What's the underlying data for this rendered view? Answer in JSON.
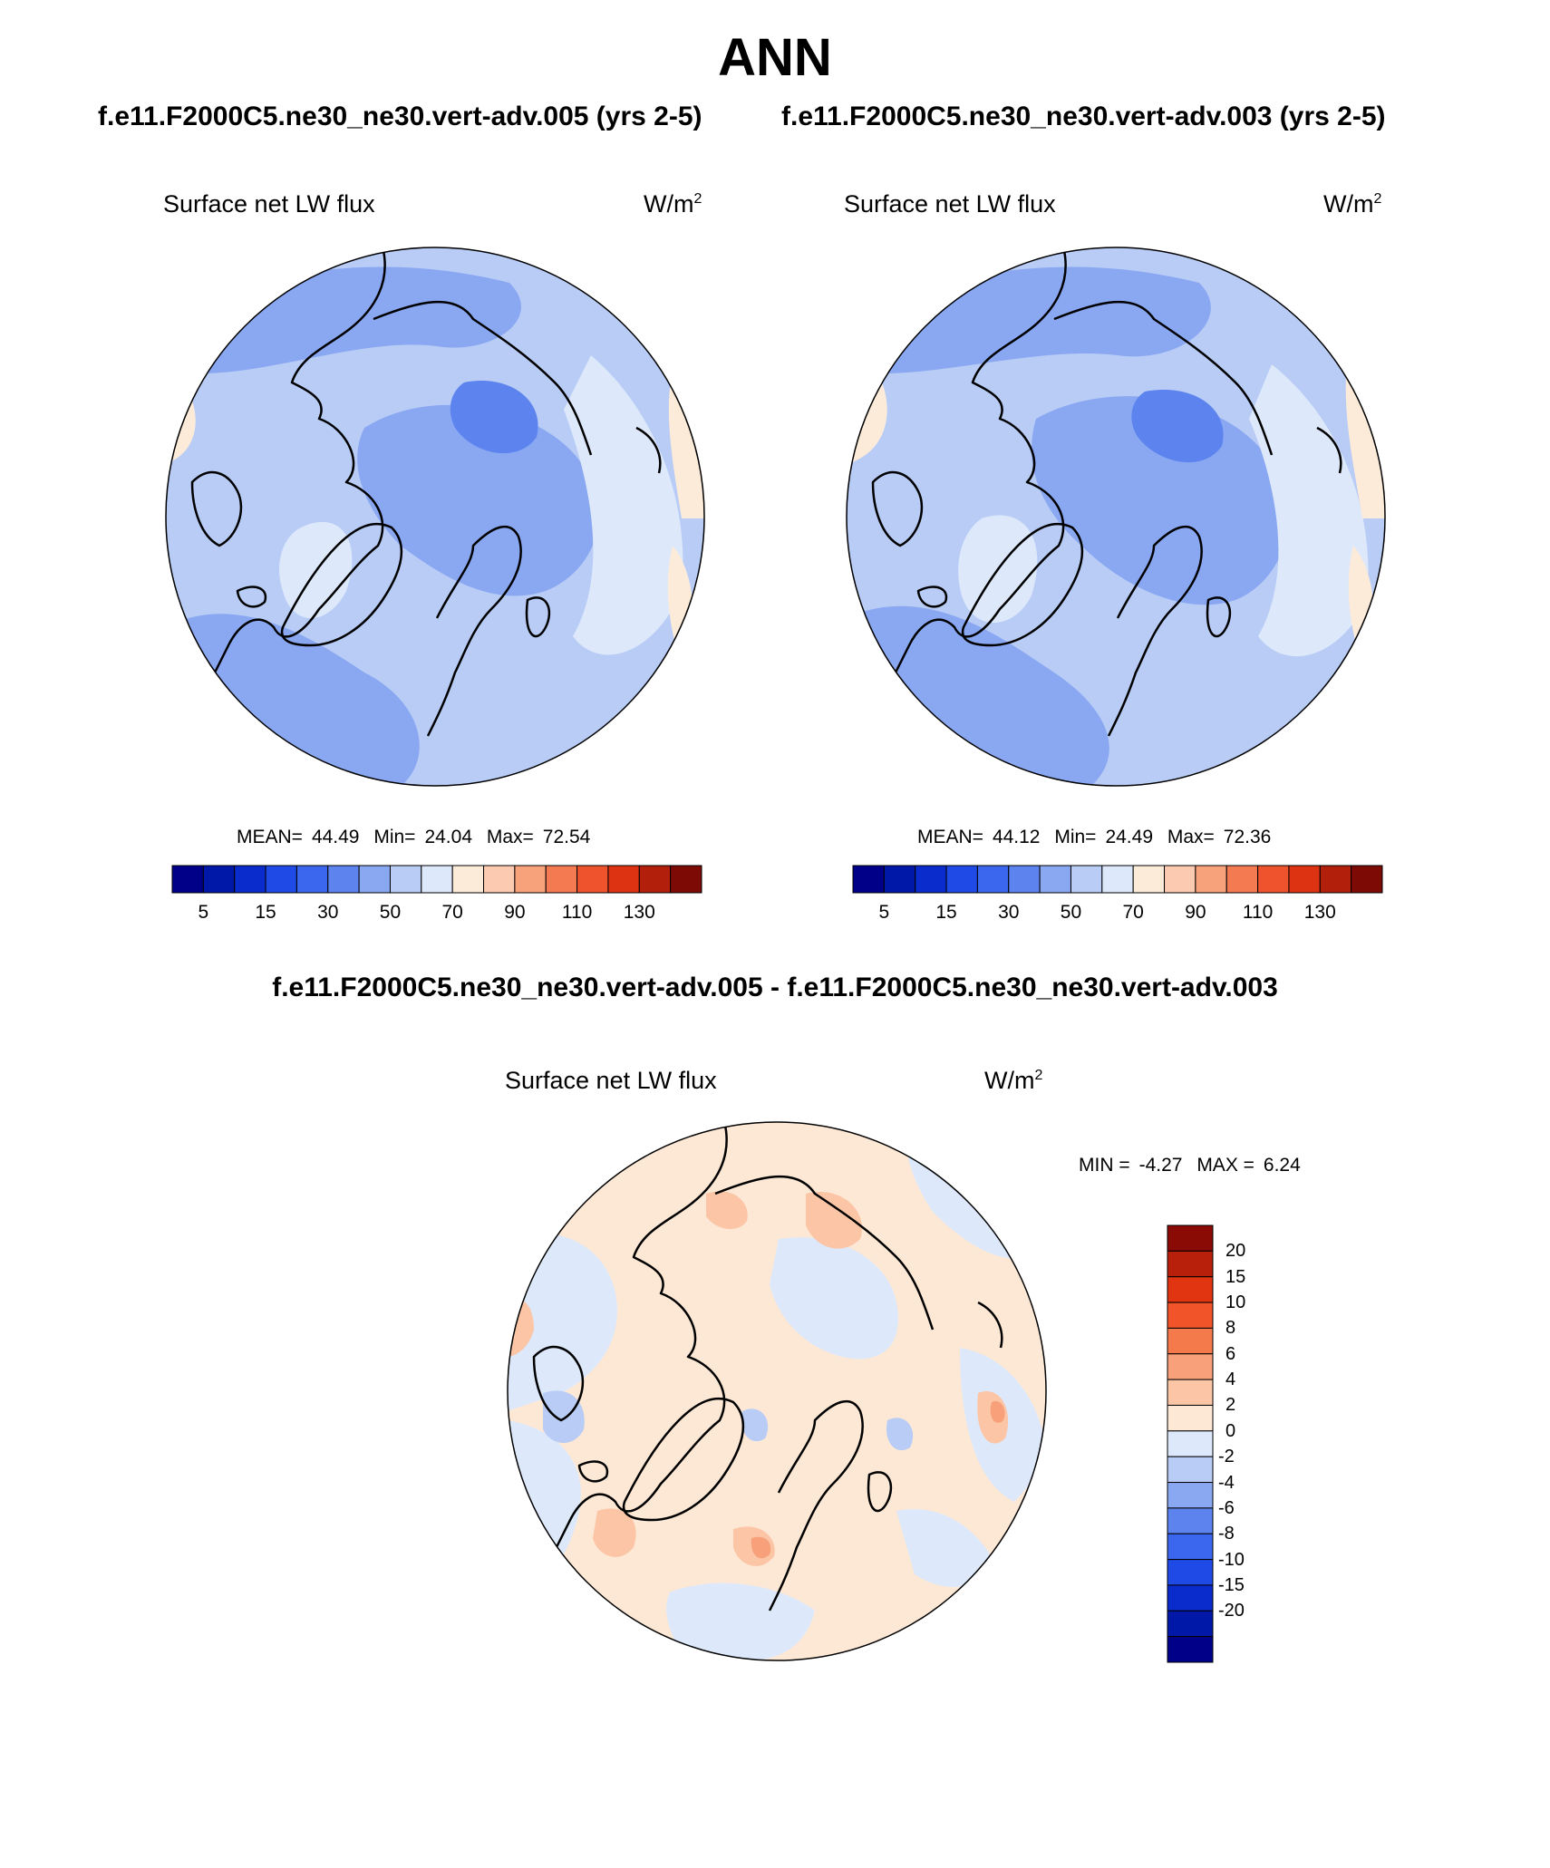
{
  "title": "ANN",
  "case_titles": [
    "f.e11.F2000C5.ne30_ne30.vert-adv.005 (yrs 2-5)",
    "f.e11.F2000C5.ne30_ne30.vert-adv.003 (yrs 2-5)"
  ],
  "diff_title": "f.e11.F2000C5.ne30_ne30.vert-adv.005 - f.e11.F2000C5.ne30_ne30.vert-adv.003",
  "variable": "Surface net LW flux",
  "units_base": "W/m",
  "units_exp": "2",
  "panels": [
    {
      "mean_label": "MEAN=",
      "mean_value": "44.49",
      "min_label": "Min=",
      "min_value": "24.04",
      "max_label": "Max=",
      "max_value": "72.54"
    },
    {
      "mean_label": "MEAN=",
      "mean_value": "44.12",
      "min_label": "Min=",
      "min_value": "24.49",
      "max_label": "Max=",
      "max_value": "72.36"
    }
  ],
  "diff_stats": {
    "min_label": "MIN =",
    "min_value": "-4.27",
    "max_label": "MAX =",
    "max_value": "6.24"
  },
  "colorbar_main": {
    "colors": [
      "#000088",
      "#0018a8",
      "#0a2ccc",
      "#1f4ae6",
      "#3a67ee",
      "#5d84ee",
      "#8aa8f2",
      "#b8ccf6",
      "#dde9fb",
      "#fdebd9",
      "#fbcab0",
      "#f8a27c",
      "#f47a52",
      "#ee532e",
      "#de3313",
      "#b21f0a",
      "#7e0a06"
    ],
    "ticks": [
      "5",
      "15",
      "30",
      "50",
      "70",
      "90",
      "110",
      "130"
    ]
  },
  "colorbar_diff": {
    "colors_top_to_bottom": [
      "#8a0a06",
      "#b8200b",
      "#e03510",
      "#f05428",
      "#f47a4c",
      "#f8a07a",
      "#fbc5a6",
      "#fde8d6",
      "#dde9fb",
      "#b8ccf6",
      "#8aa8f2",
      "#5d84ee",
      "#3a67ee",
      "#1f4ae6",
      "#0a2ccc",
      "#0018a8",
      "#000088"
    ],
    "ticks_top_to_bottom": [
      "20",
      "15",
      "10",
      "8",
      "6",
      "4",
      "2",
      "0",
      "-2",
      "-4",
      "-6",
      "-8",
      "-10",
      "-15",
      "-20"
    ]
  },
  "map_colors": {
    "main_base": "#b8ccf6",
    "main_mid": "#8aa8f2",
    "main_dark": "#5d84ee",
    "main_light": "#dde9fb",
    "main_warm": "#fdebd9",
    "diff_base": "#fde8d6",
    "diff_cool": "#dde9fb",
    "diff_cool2": "#b8ccf6",
    "diff_warm": "#fbc5a6",
    "diff_warm2": "#f8a07a",
    "coast": "#000000"
  }
}
